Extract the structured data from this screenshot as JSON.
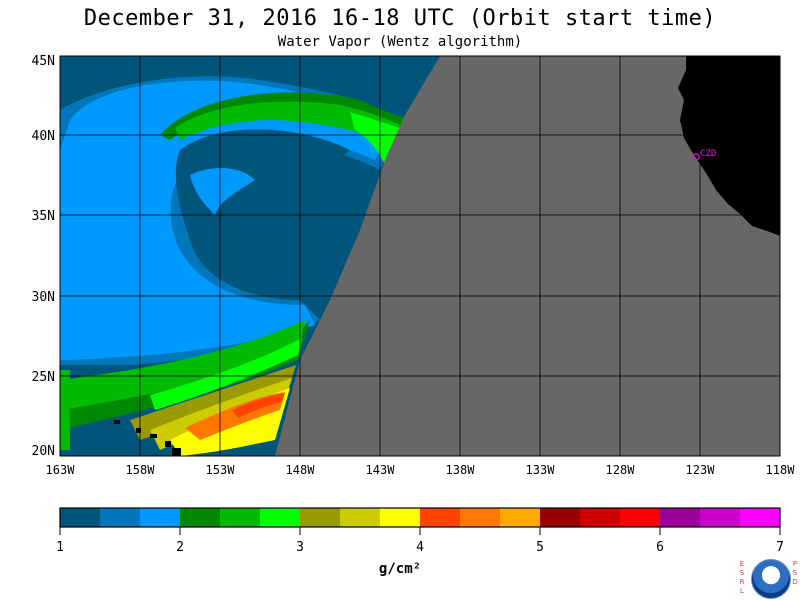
{
  "header": {
    "title": "December 31, 2016  16-18 UTC  (Orbit start time)",
    "subtitle": "Water Vapor (Wentz algorithm)"
  },
  "map": {
    "lat_labels": [
      "45N",
      "40N",
      "35N",
      "30N",
      "25N",
      "20N"
    ],
    "lon_labels": [
      "163W",
      "158W",
      "153W",
      "148W",
      "143W",
      "138W",
      "133W",
      "128W",
      "123W",
      "118W"
    ],
    "station_label": "CZD",
    "colors": {
      "land": "#000000",
      "no_data": "#676767",
      "station": "#ff00ff",
      "grid": "#000000"
    }
  },
  "legend": {
    "tick_labels": [
      "1",
      "2",
      "3",
      "4",
      "5",
      "6",
      "7"
    ],
    "units": "g/cm²",
    "swatches": [
      "#00557a",
      "#0077bb",
      "#0099ff",
      "#008800",
      "#00bb00",
      "#00ff00",
      "#999900",
      "#cccc00",
      "#ffff00",
      "#ff4400",
      "#ff7700",
      "#ffaa00",
      "#990000",
      "#cc0000",
      "#ff0000",
      "#990099",
      "#cc00cc",
      "#ff00ff"
    ]
  },
  "logo": {
    "left_text": "ESRL",
    "right_text": "PSD",
    "name": "noaa-logo"
  }
}
